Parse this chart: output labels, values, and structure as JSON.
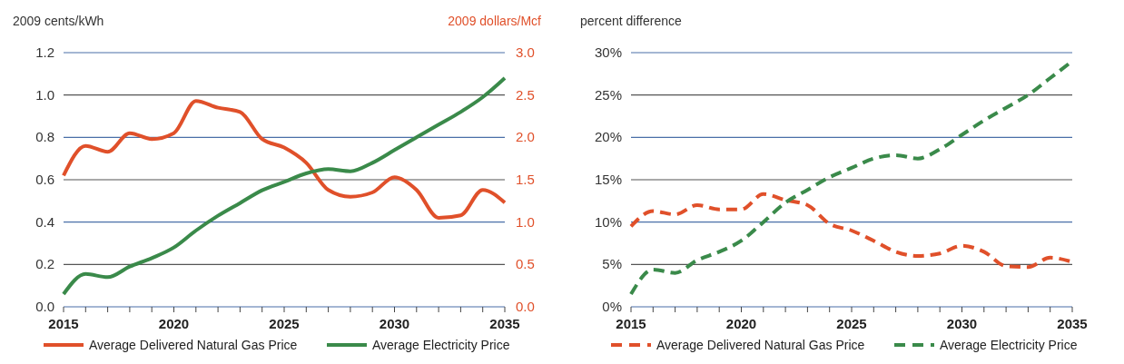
{
  "chart_data": [
    {
      "type": "line",
      "ylabel": "2009 cents/kWh",
      "y2label": "2009 dollars/Mcf",
      "x": [
        2015,
        2016,
        2017,
        2018,
        2019,
        2020,
        2021,
        2022,
        2023,
        2024,
        2025,
        2026,
        2027,
        2028,
        2029,
        2030,
        2031,
        2032,
        2033,
        2034,
        2035
      ],
      "xlim": [
        2015,
        2035
      ],
      "xticks": [
        2015,
        {
          "value": 2016,
          "label": null
        },
        {
          "value": 2017,
          "label": null
        },
        {
          "value": 2018,
          "label": null
        },
        {
          "value": 2019,
          "label": null
        },
        2020,
        {
          "value": 2021,
          "label": null
        },
        {
          "value": 2022,
          "label": null
        },
        {
          "value": 2023,
          "label": null
        },
        {
          "value": 2024,
          "label": null
        },
        2025,
        {
          "value": 2026,
          "label": null
        },
        {
          "value": 2027,
          "label": null
        },
        {
          "value": 2028,
          "label": null
        },
        {
          "value": 2029,
          "label": null
        },
        2030,
        {
          "value": 2031,
          "label": null
        },
        {
          "value": 2032,
          "label": null
        },
        {
          "value": 2033,
          "label": null
        },
        {
          "value": 2034,
          "label": null
        },
        2035
      ],
      "ylim": [
        0,
        1.2
      ],
      "yticks": [
        {
          "value": 0,
          "label": "0.0"
        },
        0.2,
        0.4,
        0.6,
        0.8,
        {
          "value": 1,
          "label": "1.0"
        },
        1.2
      ],
      "y2lim": [
        0,
        3
      ],
      "y2ticks": [
        {
          "value": 0,
          "label": "0.0"
        },
        0.5,
        {
          "value": 1,
          "label": "1.0"
        },
        1.5,
        {
          "value": 2,
          "label": "2.0"
        },
        2.5,
        {
          "value": 3,
          "label": "3.0"
        }
      ],
      "grid": "y",
      "legend": "bottom",
      "line_style": "solid",
      "marker": "none",
      "series": [
        {
          "name": "Average Delivered Natural Gas Price",
          "color": "#e0502a",
          "axis": "y2",
          "values": [
            1.55,
            1.9,
            1.83,
            2.05,
            1.98,
            2.05,
            2.43,
            2.35,
            2.3,
            1.98,
            1.88,
            1.7,
            1.38,
            1.3,
            1.35,
            1.53,
            1.38,
            1.05,
            1.08,
            1.38,
            1.23
          ]
        },
        {
          "name": "Average Electricity Price",
          "color": "#3a8a4a",
          "values": [
            0.06,
            0.155,
            0.14,
            0.19,
            0.23,
            0.28,
            0.36,
            0.43,
            0.49,
            0.55,
            0.59,
            0.63,
            0.65,
            0.64,
            0.68,
            0.74,
            0.8,
            0.86,
            0.92,
            0.99,
            1.08
          ]
        }
      ]
    },
    {
      "type": "line",
      "ylabel": "percent difference",
      "x": [
        2015,
        2016,
        2017,
        2018,
        2019,
        2020,
        2021,
        2022,
        2023,
        2024,
        2025,
        2026,
        2027,
        2028,
        2029,
        2030,
        2031,
        2032,
        2033,
        2034,
        2035
      ],
      "xlim": [
        2015,
        2035
      ],
      "xticks": [
        2015,
        {
          "value": 2016,
          "label": null
        },
        {
          "value": 2017,
          "label": null
        },
        {
          "value": 2018,
          "label": null
        },
        {
          "value": 2019,
          "label": null
        },
        2020,
        {
          "value": 2021,
          "label": null
        },
        {
          "value": 2022,
          "label": null
        },
        {
          "value": 2023,
          "label": null
        },
        {
          "value": 2024,
          "label": null
        },
        2025,
        {
          "value": 2026,
          "label": null
        },
        {
          "value": 2027,
          "label": null
        },
        {
          "value": 2028,
          "label": null
        },
        {
          "value": 2029,
          "label": null
        },
        2030,
        {
          "value": 2031,
          "label": null
        },
        {
          "value": 2032,
          "label": null
        },
        {
          "value": 2033,
          "label": null
        },
        {
          "value": 2034,
          "label": null
        },
        2035
      ],
      "ylim": [
        0,
        30
      ],
      "yticks": [
        {
          "value": 0,
          "label": "0%"
        },
        {
          "value": 5,
          "label": "5%"
        },
        {
          "value": 10,
          "label": "10%"
        },
        {
          "value": 15,
          "label": "15%"
        },
        {
          "value": 20,
          "label": "20%"
        },
        {
          "value": 25,
          "label": "25%"
        },
        {
          "value": 30,
          "label": "30%"
        }
      ],
      "grid": "y",
      "legend": "bottom",
      "line_style": "dashed",
      "marker": "none",
      "series": [
        {
          "name": "Average Delivered Natural Gas Price",
          "color": "#e0502a",
          "values": [
            9.5,
            11.3,
            10.9,
            12,
            11.5,
            11.5,
            13.3,
            12.6,
            12,
            9.8,
            9,
            7.8,
            6.5,
            6,
            6.3,
            7.2,
            6.5,
            4.8,
            4.7,
            5.8,
            5.3
          ]
        },
        {
          "name": "Average Electricity Price",
          "color": "#3a8a4a",
          "values": [
            1.5,
            4.4,
            4,
            5.5,
            6.5,
            7.8,
            10,
            12.3,
            13.8,
            15.3,
            16.4,
            17.5,
            17.9,
            17.5,
            18.6,
            20.3,
            22,
            23.5,
            25,
            27,
            29
          ]
        }
      ]
    }
  ]
}
